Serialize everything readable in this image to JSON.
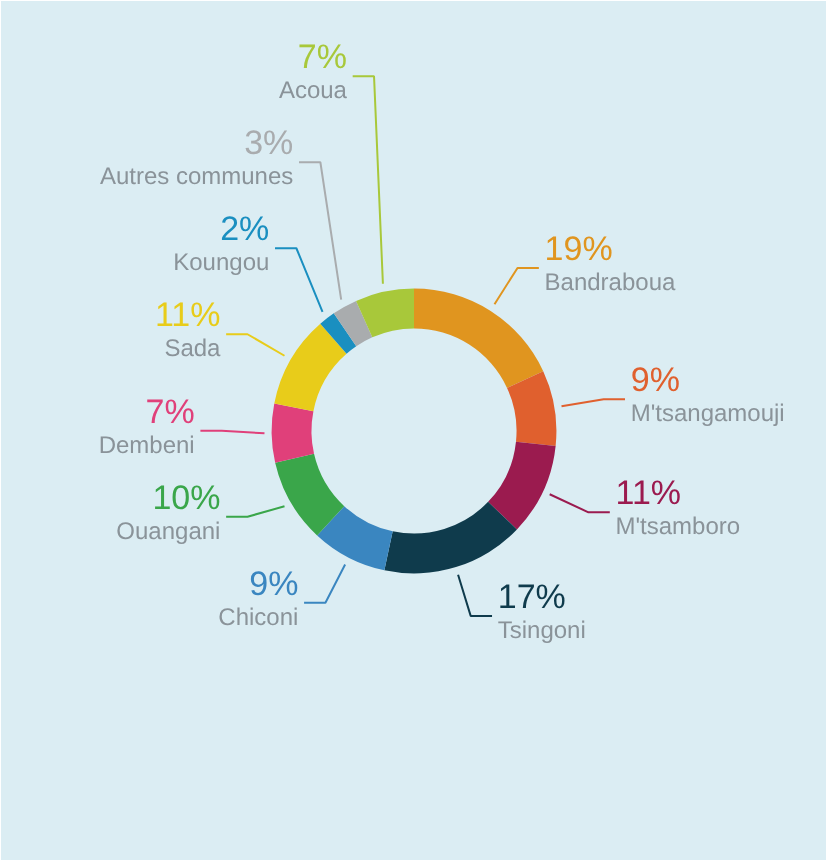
{
  "chart_data": {
    "type": "donut",
    "categories": [
      "Bandraboua",
      "M'tsangamouji",
      "M'tsamboro",
      "Tsingoni",
      "Chiconi",
      "Ouangani",
      "Dembeni",
      "Sada",
      "Koungou",
      "Autres communes",
      "Acoua"
    ],
    "values": [
      19,
      9,
      11,
      17,
      9,
      10,
      7,
      11,
      2,
      3,
      7
    ],
    "value_labels": [
      "19%",
      "9%",
      "11%",
      "17%",
      "9%",
      "10%",
      "7%",
      "11%",
      "2%",
      "3%",
      "7%"
    ],
    "colors": [
      "#e0951f",
      "#e0602e",
      "#9b1b4f",
      "#0f3b4c",
      "#3a86c0",
      "#3aa64a",
      "#e0407a",
      "#e8cc1a",
      "#1a8fc0",
      "#a9acae",
      "#a8c83a"
    ]
  }
}
